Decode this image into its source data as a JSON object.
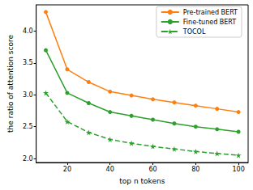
{
  "chart_data": {
    "type": "line",
    "x_label": "top n tokens",
    "y_label": "the ratio of attention score",
    "x": [
      10,
      20,
      30,
      40,
      50,
      60,
      70,
      80,
      90,
      100
    ],
    "series": [
      {
        "name": "Pre-trained BERT",
        "color": "#ff7f0e",
        "marker": "circle",
        "line_style": "solid",
        "values": [
          4.3,
          3.4,
          3.2,
          3.05,
          2.99,
          2.93,
          2.88,
          2.83,
          2.78,
          2.73
        ]
      },
      {
        "name": "Fine-tuned BERT",
        "color": "#2ca02c",
        "marker": "circle",
        "line_style": "solid",
        "values": [
          3.7,
          3.03,
          2.87,
          2.73,
          2.67,
          2.61,
          2.55,
          2.5,
          2.46,
          2.42
        ]
      },
      {
        "name": "TOCOL",
        "color": "#2ca02c",
        "marker": "star",
        "line_style": "dashed",
        "values": [
          3.03,
          2.58,
          2.41,
          2.3,
          2.24,
          2.19,
          2.15,
          2.11,
          2.08,
          2.05
        ]
      }
    ],
    "xlim": [
      5.5,
      104.5
    ],
    "xticks": [
      20,
      40,
      60,
      80,
      100
    ],
    "ylim": [
      1.9375,
      4.4125
    ],
    "yticks": [
      {
        "value": 2,
        "label": "2.0"
      },
      2.5,
      {
        "value": 3,
        "label": "3.0"
      },
      3.5,
      {
        "value": 4,
        "label": "4.0"
      }
    ],
    "grid": false,
    "legend": "upper right"
  }
}
